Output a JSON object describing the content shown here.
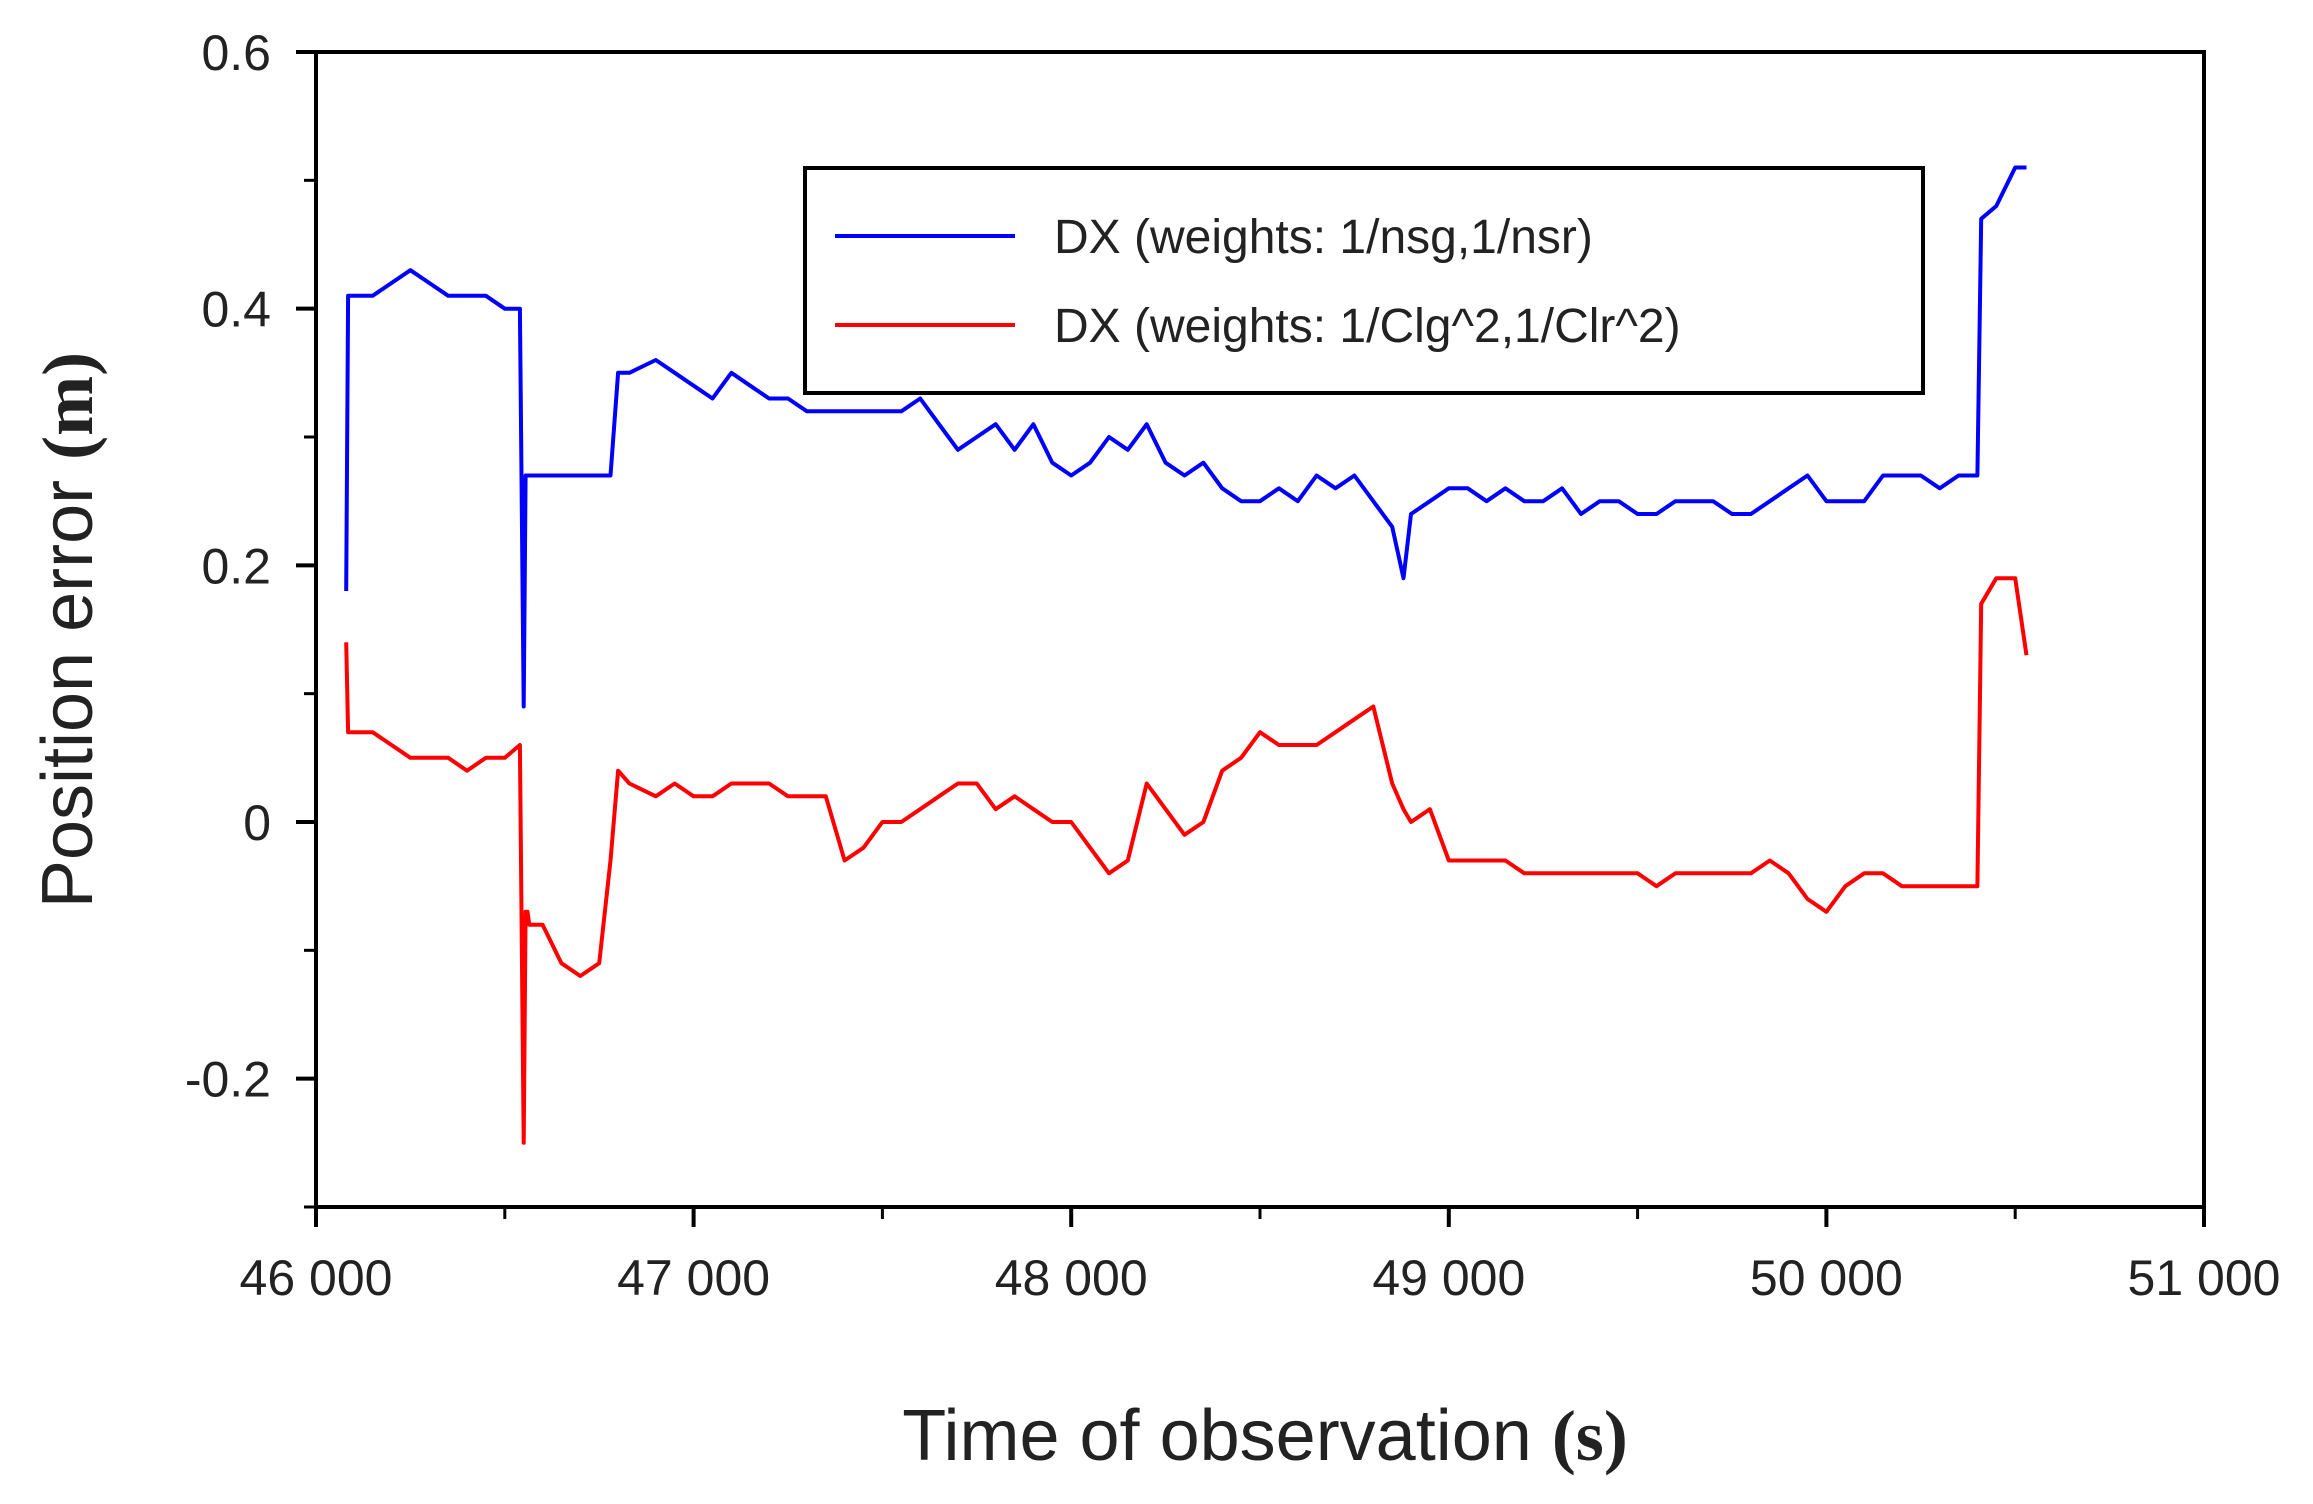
{
  "chart_data": {
    "type": "line",
    "title": "",
    "xlabel": "Time of observation",
    "xlabel_unit": "(s)",
    "ylabel": "Position error",
    "ylabel_unit": "(m)",
    "xlim": [
      46000,
      51000
    ],
    "ylim": [
      -0.3,
      0.6
    ],
    "x_ticks": [
      46000,
      47000,
      48000,
      49000,
      50000,
      51000
    ],
    "x_tick_labels": [
      "46 000",
      "47 000",
      "48 000",
      "49 000",
      "50 000",
      "51 000"
    ],
    "y_ticks": [
      -0.2,
      0,
      0.2,
      0.4,
      0.6
    ],
    "y_tick_labels": [
      "-0.2",
      "0",
      "0.2",
      "0.4",
      "0.6"
    ],
    "legend_position": "top-right",
    "series": [
      {
        "name": "DX (weights: 1/nsg,1/nsr)",
        "color": "#0000ff",
        "x": [
          46080,
          46085,
          46090,
          46150,
          46200,
          46250,
          46300,
          46350,
          46400,
          46450,
          46500,
          46540,
          46550,
          46555,
          46560,
          46565,
          46600,
          46650,
          46700,
          46750,
          46780,
          46800,
          46830,
          46900,
          46950,
          47000,
          47050,
          47100,
          47150,
          47200,
          47250,
          47300,
          47350,
          47400,
          47450,
          47500,
          47550,
          47600,
          47650,
          47700,
          47750,
          47800,
          47850,
          47900,
          47950,
          48000,
          48050,
          48100,
          48150,
          48200,
          48250,
          48300,
          48350,
          48400,
          48450,
          48500,
          48550,
          48600,
          48650,
          48700,
          48750,
          48800,
          48850,
          48880,
          48900,
          48950,
          49000,
          49050,
          49100,
          49150,
          49200,
          49250,
          49300,
          49350,
          49400,
          49450,
          49500,
          49550,
          49600,
          49650,
          49700,
          49750,
          49800,
          49850,
          49900,
          49950,
          50000,
          50050,
          50100,
          50150,
          50200,
          50250,
          50300,
          50350,
          50400,
          50410,
          50450,
          50500,
          50530
        ],
        "values": [
          0.18,
          0.41,
          0.41,
          0.41,
          0.42,
          0.43,
          0.42,
          0.41,
          0.41,
          0.41,
          0.4,
          0.4,
          0.09,
          0.27,
          0.27,
          0.27,
          0.27,
          0.27,
          0.27,
          0.27,
          0.27,
          0.35,
          0.35,
          0.36,
          0.35,
          0.34,
          0.33,
          0.35,
          0.34,
          0.33,
          0.33,
          0.32,
          0.32,
          0.32,
          0.32,
          0.32,
          0.32,
          0.33,
          0.31,
          0.29,
          0.3,
          0.31,
          0.29,
          0.31,
          0.28,
          0.27,
          0.28,
          0.3,
          0.29,
          0.31,
          0.28,
          0.27,
          0.28,
          0.26,
          0.25,
          0.25,
          0.26,
          0.25,
          0.27,
          0.26,
          0.27,
          0.25,
          0.23,
          0.19,
          0.24,
          0.25,
          0.26,
          0.26,
          0.25,
          0.26,
          0.25,
          0.25,
          0.26,
          0.24,
          0.25,
          0.25,
          0.24,
          0.24,
          0.25,
          0.25,
          0.25,
          0.24,
          0.24,
          0.25,
          0.26,
          0.27,
          0.25,
          0.25,
          0.25,
          0.27,
          0.27,
          0.27,
          0.26,
          0.27,
          0.27,
          0.47,
          0.48,
          0.51,
          0.51
        ]
      },
      {
        "name": "DX (weights: 1/Clg^2,1/Clr^2)",
        "color": "#ff0000",
        "x": [
          46080,
          46085,
          46090,
          46150,
          46200,
          46250,
          46300,
          46350,
          46400,
          46450,
          46500,
          46540,
          46550,
          46555,
          46560,
          46565,
          46600,
          46650,
          46700,
          46750,
          46780,
          46800,
          46830,
          46900,
          46950,
          47000,
          47050,
          47100,
          47150,
          47200,
          47250,
          47300,
          47350,
          47400,
          47450,
          47500,
          47550,
          47600,
          47650,
          47700,
          47750,
          47800,
          47850,
          47900,
          47950,
          48000,
          48050,
          48100,
          48150,
          48200,
          48250,
          48300,
          48350,
          48400,
          48450,
          48500,
          48550,
          48600,
          48650,
          48700,
          48750,
          48800,
          48850,
          48880,
          48900,
          48950,
          49000,
          49050,
          49100,
          49150,
          49200,
          49250,
          49300,
          49350,
          49400,
          49450,
          49500,
          49550,
          49600,
          49650,
          49700,
          49750,
          49800,
          49850,
          49900,
          49950,
          50000,
          50050,
          50100,
          50150,
          50200,
          50250,
          50300,
          50350,
          50400,
          50410,
          50450,
          50500,
          50530
        ],
        "values": [
          0.14,
          0.07,
          0.07,
          0.07,
          0.06,
          0.05,
          0.05,
          0.05,
          0.04,
          0.05,
          0.05,
          0.06,
          -0.25,
          -0.07,
          -0.07,
          -0.08,
          -0.08,
          -0.11,
          -0.12,
          -0.11,
          -0.03,
          0.04,
          0.03,
          0.02,
          0.03,
          0.02,
          0.02,
          0.03,
          0.03,
          0.03,
          0.02,
          0.02,
          0.02,
          -0.03,
          -0.02,
          0.0,
          0.0,
          0.01,
          0.02,
          0.03,
          0.03,
          0.01,
          0.02,
          0.01,
          0.0,
          0.0,
          -0.02,
          -0.04,
          -0.03,
          0.03,
          0.01,
          -0.01,
          0.0,
          0.04,
          0.05,
          0.07,
          0.06,
          0.06,
          0.06,
          0.07,
          0.08,
          0.09,
          0.03,
          0.01,
          0.0,
          0.01,
          -0.03,
          -0.03,
          -0.03,
          -0.03,
          -0.04,
          -0.04,
          -0.04,
          -0.04,
          -0.04,
          -0.04,
          -0.04,
          -0.05,
          -0.04,
          -0.04,
          -0.04,
          -0.04,
          -0.04,
          -0.03,
          -0.04,
          -0.06,
          -0.07,
          -0.05,
          -0.04,
          -0.04,
          -0.05,
          -0.05,
          -0.05,
          -0.05,
          -0.05,
          0.17,
          0.19,
          0.19,
          0.13
        ]
      }
    ]
  }
}
